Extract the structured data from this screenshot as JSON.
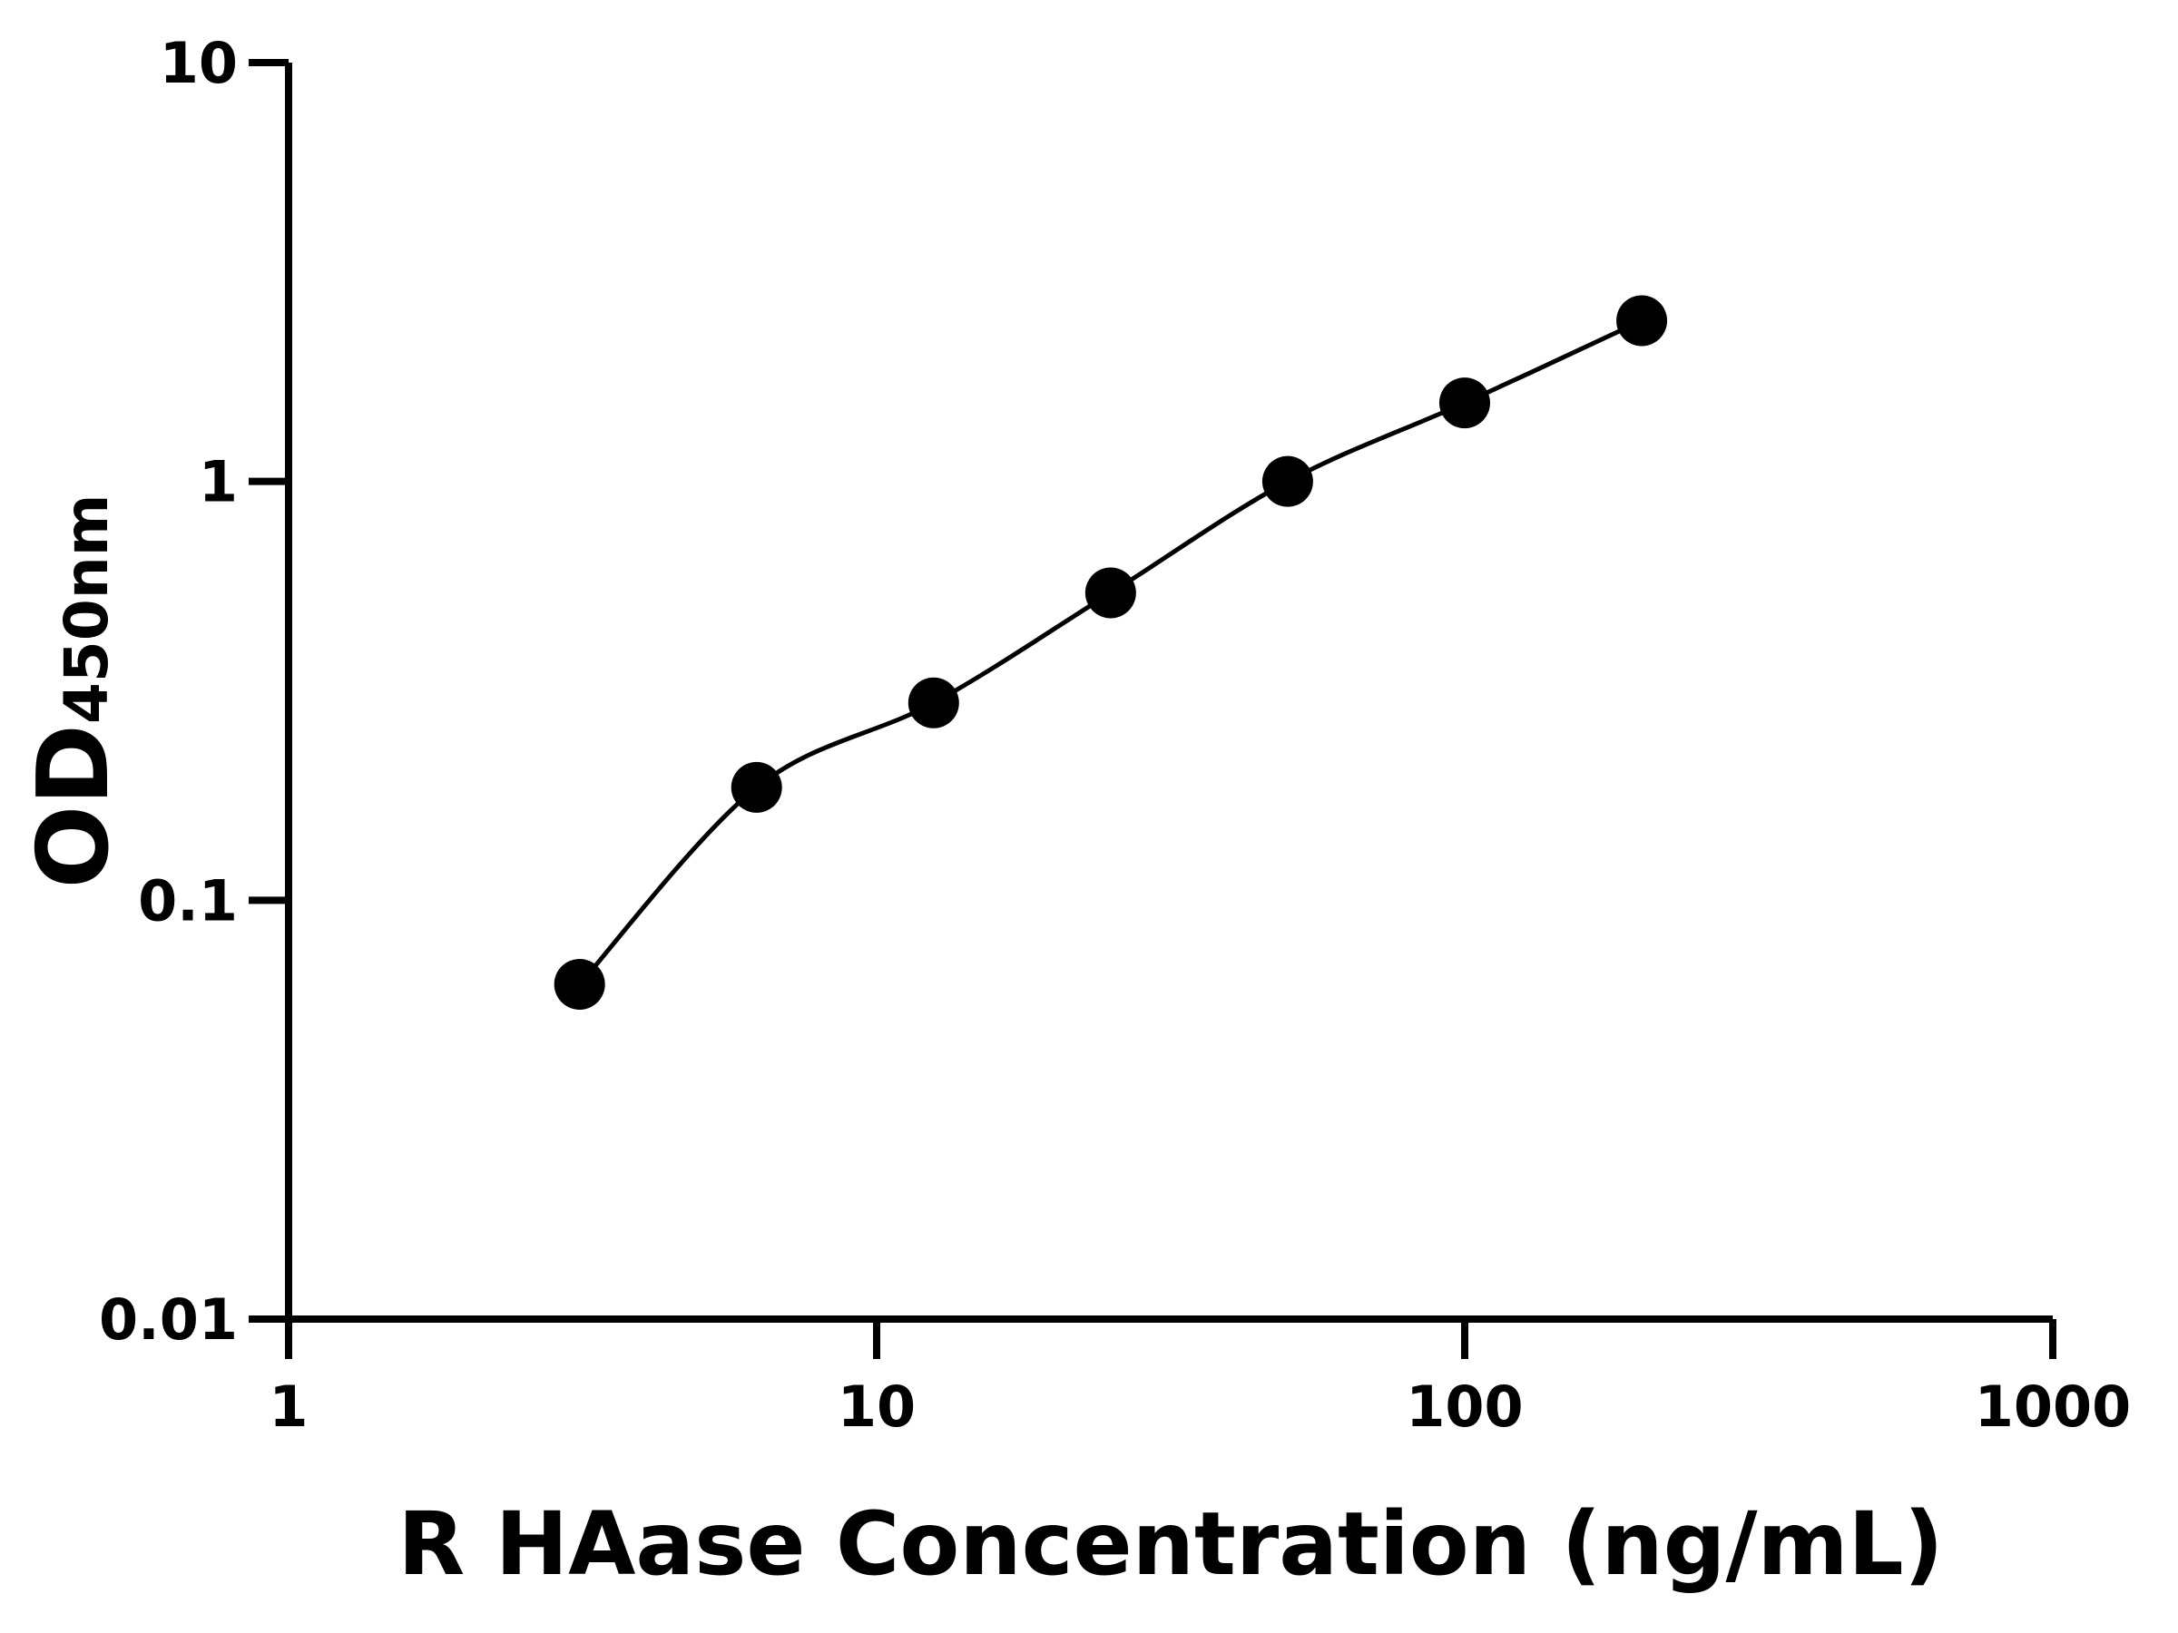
{
  "chart_data": {
    "type": "scatter",
    "title": "",
    "xlabel": "R HAase Concentration (ng/mL)",
    "ylabel_main": "OD",
    "ylabel_sub": "450nm",
    "x_scale": "log",
    "y_scale": "log",
    "xlim": [
      1,
      1000
    ],
    "ylim": [
      0.01,
      10
    ],
    "x_ticks": [
      "1",
      "10",
      "100",
      "1000"
    ],
    "y_ticks": [
      "0.01",
      "0.1",
      "1",
      "10"
    ],
    "grid": false,
    "legend": "none",
    "fit_curve": true,
    "colors": {
      "points": "#000000",
      "curve": "#000000",
      "axes": "#000000"
    },
    "series": [
      {
        "x": [
          3.125,
          6.25,
          12.5,
          25,
          50,
          100,
          200
        ],
        "y": [
          0.063,
          0.186,
          0.296,
          0.542,
          1.0,
          1.54,
          2.42
        ]
      }
    ]
  }
}
